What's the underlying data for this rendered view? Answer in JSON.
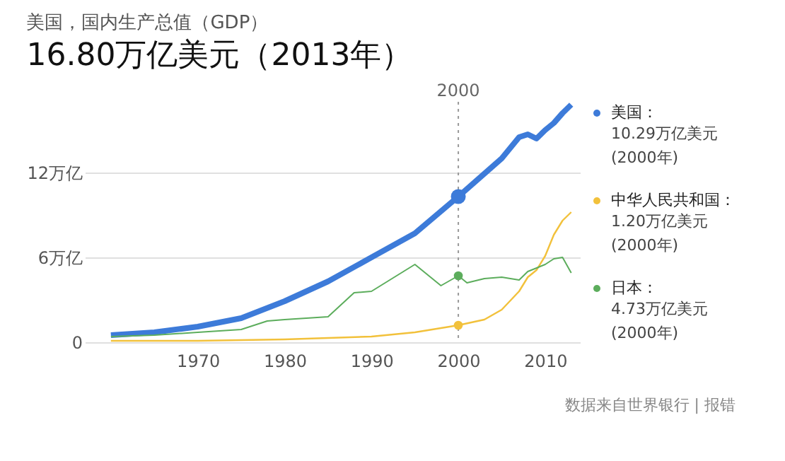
{
  "chart_data": {
    "type": "line",
    "title": "美国，国内生产总值（GDP）",
    "subtitle": "16.80万亿美元（2013年）",
    "series": [
      {
        "name": "美国：",
        "color": "#3d7bd9",
        "x": [
          1960,
          1965,
          1970,
          1975,
          1980,
          1985,
          1990,
          1995,
          2000,
          2005,
          2007,
          2008,
          2009,
          2010,
          2011,
          2012,
          2013
        ],
        "values": [
          0.5,
          0.7,
          1.1,
          1.7,
          2.9,
          4.3,
          6.0,
          7.7,
          10.3,
          13.0,
          14.5,
          14.7,
          14.4,
          15.0,
          15.5,
          16.2,
          16.8
        ]
      },
      {
        "name": "中华人民共和国：",
        "color": "#f2c13b",
        "x": [
          1960,
          1970,
          1980,
          1985,
          1990,
          1995,
          2000,
          2003,
          2005,
          2007,
          2008,
          2009,
          2010,
          2011,
          2012,
          2013
        ],
        "values": [
          0.1,
          0.1,
          0.2,
          0.3,
          0.4,
          0.7,
          1.2,
          1.6,
          2.3,
          3.6,
          4.6,
          5.1,
          6.1,
          7.6,
          8.6,
          9.2
        ]
      },
      {
        "name": "日本：",
        "color": "#5cad5c",
        "x": [
          1960,
          1965,
          1970,
          1975,
          1978,
          1980,
          1985,
          1988,
          1990,
          1995,
          1998,
          2000,
          2001,
          2003,
          2005,
          2007,
          2008,
          2010,
          2011,
          2012,
          2013
        ],
        "values": [
          0.4,
          0.5,
          0.7,
          0.9,
          1.5,
          1.6,
          1.8,
          3.5,
          3.6,
          5.5,
          4.0,
          4.7,
          4.2,
          4.5,
          4.6,
          4.4,
          5.0,
          5.5,
          5.9,
          6.0,
          4.9
        ]
      }
    ],
    "annotations": [
      "10.29万亿美元 (2000年)",
      "1.20万亿美元 (2000年)",
      "4.73万亿美元 (2000年)",
      "数据来自世界银行 | 报错"
    ],
    "ref_lines": [
      {
        "axis": "x",
        "value": 2000,
        "label": "2000",
        "color": "#999999",
        "line_style": "dotted"
      }
    ],
    "xlim": [
      1957,
      2014
    ],
    "xticks": [
      1970,
      1980,
      1990,
      2000,
      2010
    ],
    "ylim": [
      0,
      17
    ],
    "yticks": [
      0,
      {
        "value": 6,
        "label": "6万亿"
      },
      {
        "value": 12,
        "label": "12万亿"
      }
    ],
    "grid": "y",
    "legend": "right"
  }
}
